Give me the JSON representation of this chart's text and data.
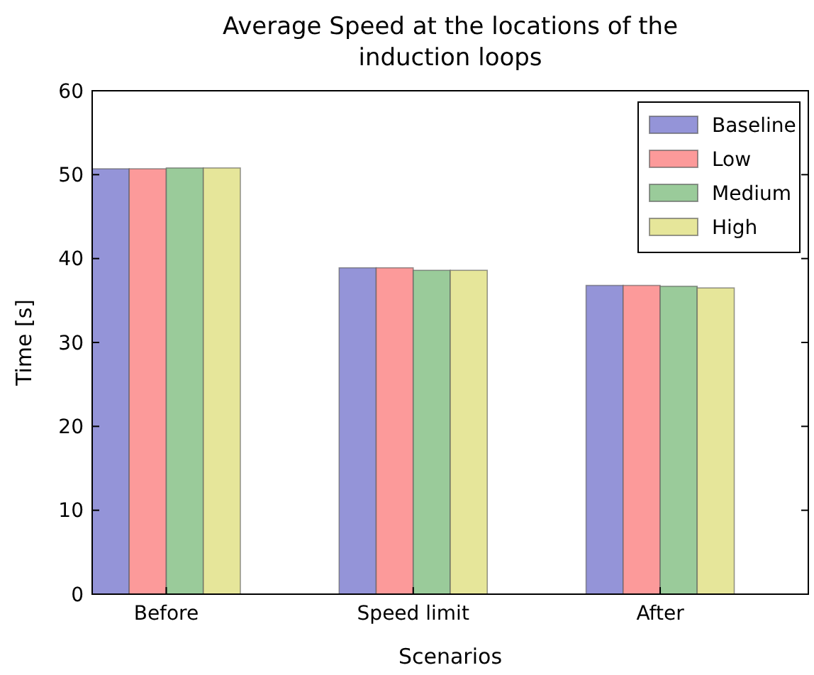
{
  "chart_data": {
    "type": "bar",
    "title": "Average Speed at the locations of the induction loops",
    "xlabel": "Scenarios",
    "ylabel": "Time [s]",
    "categories": [
      "Before",
      "Speed limit",
      "After"
    ],
    "series": [
      {
        "name": "Baseline",
        "color": "#9494d8",
        "values": [
          50.7,
          38.9,
          36.8
        ]
      },
      {
        "name": "Low",
        "color": "#fc9a9a",
        "values": [
          50.7,
          38.9,
          36.8
        ]
      },
      {
        "name": "Medium",
        "color": "#9acb9a",
        "values": [
          50.8,
          38.6,
          36.7
        ]
      },
      {
        "name": "High",
        "color": "#e6e69a",
        "values": [
          50.8,
          38.6,
          36.5
        ]
      }
    ],
    "ylim": [
      0,
      60
    ],
    "yticks": [
      0,
      10,
      20,
      30,
      40,
      50,
      60
    ],
    "grid": false,
    "legend": "top right"
  }
}
